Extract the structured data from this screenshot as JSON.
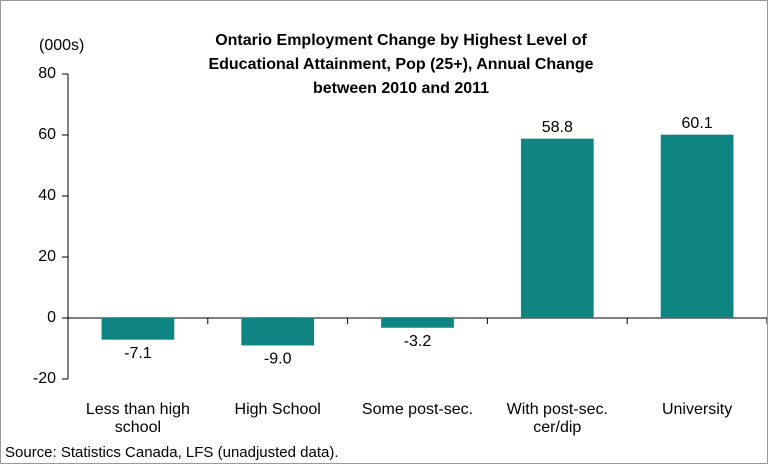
{
  "chart_data": {
    "type": "bar",
    "title": "Ontario Employment Change by Highest Level of Educational Attainment,  Pop (25+), Annual Change between 2010 and  2011",
    "y_unit": "(000s)",
    "source": "Source: Statistics Canada, LFS (unadjusted data).",
    "categories": [
      "Less than high school",
      "High School",
      "Some post-sec.",
      "With post-sec. cer/dip",
      "University"
    ],
    "values": [
      -7.1,
      -9.0,
      -3.2,
      58.8,
      60.1
    ],
    "value_labels": [
      "-7.1",
      "-9.0",
      "-3.2",
      "58.8",
      "60.1"
    ],
    "color": "#0e8582",
    "ylim": [
      -20,
      80
    ],
    "yticks": [
      -20,
      0,
      20,
      40,
      60,
      80
    ]
  }
}
